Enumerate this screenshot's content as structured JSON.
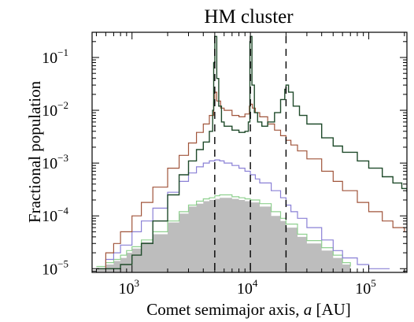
{
  "chart_data": {
    "type": "line",
    "title": "HM cluster",
    "xlabel_text": "Comet semimajor axis, ",
    "xlabel_var": "a",
    "xlabel_unit": " [AU]",
    "ylabel": "Fractional population",
    "xscale": "log",
    "yscale": "log",
    "xlim": [
      460,
      210000
    ],
    "ylim": [
      8.5e-06,
      0.3
    ],
    "x_ticks": [
      {
        "base": "10",
        "exp": "3",
        "value": 1000
      },
      {
        "base": "10",
        "exp": "4",
        "value": 10000
      },
      {
        "base": "10",
        "exp": "5",
        "value": 100000
      }
    ],
    "y_ticks": [
      {
        "base": "10",
        "exp": "−5",
        "value": 1e-05
      },
      {
        "base": "10",
        "exp": "−4",
        "value": 0.0001
      },
      {
        "base": "10",
        "exp": "−3",
        "value": 0.001
      },
      {
        "base": "10",
        "exp": "−2",
        "value": 0.01
      },
      {
        "base": "10",
        "exp": "−1",
        "value": 0.1
      }
    ],
    "reference_lines_x": [
      5000,
      10000,
      20000
    ],
    "colors": {
      "gray_fill": "#bdbdbd",
      "light_green": "#8fd08f",
      "purple": "#8a80d6",
      "brown": "#a0543a",
      "dark_green": "#1f4a2a",
      "axis": "#000000"
    },
    "series": [
      {
        "key": "gray",
        "style": "filled-histogram",
        "x": [
          500,
          600,
          700,
          800,
          900,
          1000,
          1200,
          1500,
          2000,
          2500,
          3000,
          3500,
          4000,
          4500,
          5000,
          5500,
          6000,
          7000,
          8000,
          9000,
          10000,
          12000,
          15000,
          18000,
          20000,
          25000,
          30000,
          40000,
          50000,
          60000,
          70000
        ],
        "y": [
          1e-05,
          1.2e-05,
          1.4e-05,
          1.6e-05,
          2e-05,
          2.4e-05,
          3.2e-05,
          4.5e-05,
          7.5e-05,
          0.00011,
          0.00015,
          0.00017,
          0.00019,
          0.0002,
          0.00021,
          0.00022,
          0.00022,
          0.00021,
          0.0002,
          0.00019,
          0.00018,
          0.00015,
          0.0001,
          8e-05,
          6e-05,
          4e-05,
          3e-05,
          2.2e-05,
          1.6e-05,
          1.2e-05,
          1e-05
        ]
      },
      {
        "key": "light_green",
        "style": "step",
        "x": [
          500,
          600,
          700,
          800,
          900,
          1000,
          1200,
          1500,
          2000,
          2500,
          3000,
          3500,
          4000,
          4500,
          5000,
          5500,
          6000,
          7000,
          8000,
          9000,
          10000,
          12000,
          15000,
          18000,
          20000,
          25000,
          30000,
          40000,
          50000,
          60000,
          70000
        ],
        "y": [
          1.1e-05,
          1.3e-05,
          1.5e-05,
          1.8e-05,
          2.2e-05,
          2.6e-05,
          3.5e-05,
          5e-05,
          8e-05,
          0.00012,
          0.00016,
          0.00019,
          0.00021,
          0.00022,
          0.00024,
          0.00025,
          0.00025,
          0.00023,
          0.00022,
          0.00021,
          0.0002,
          0.00017,
          0.00012,
          9e-05,
          7e-05,
          4.5e-05,
          3.4e-05,
          2.5e-05,
          1.8e-05,
          1.3e-05,
          1.1e-05
        ]
      },
      {
        "key": "purple",
        "style": "step",
        "x": [
          500,
          600,
          700,
          800,
          1000,
          1200,
          1500,
          2000,
          2500,
          3000,
          3500,
          4000,
          4500,
          5000,
          5500,
          6000,
          7000,
          8000,
          9000,
          10000,
          11000,
          12000,
          15000,
          18000,
          20000,
          22000,
          25000,
          30000,
          40000,
          50000,
          60000,
          80000,
          100000,
          150000
        ],
        "y": [
          1e-05,
          1.5e-05,
          2e-05,
          2.8e-05,
          5e-05,
          8e-05,
          0.00014,
          0.00028,
          0.00045,
          0.00065,
          0.00085,
          0.001,
          0.0011,
          0.00115,
          0.0011,
          0.001,
          0.0009,
          0.0008,
          0.0007,
          0.0006,
          0.0005,
          0.00042,
          0.0003,
          0.00022,
          0.00016,
          0.00012,
          9e-05,
          6e-05,
          3.5e-05,
          2.2e-05,
          1.6e-05,
          1.2e-05,
          1e-05,
          1e-05
        ]
      },
      {
        "key": "brown",
        "style": "step",
        "x": [
          500,
          600,
          700,
          800,
          1000,
          1200,
          1500,
          2000,
          2500,
          3000,
          3500,
          4000,
          4500,
          4900,
          5000,
          5200,
          5600,
          6000,
          7000,
          8000,
          9000,
          9800,
          10000,
          10400,
          11000,
          12000,
          14000,
          16000,
          18000,
          20000,
          22000,
          25000,
          30000,
          40000,
          50000,
          60000,
          80000,
          100000,
          130000,
          160000,
          200000
        ],
        "y": [
          1e-05,
          2e-05,
          3e-05,
          5e-05,
          0.0001,
          0.00018,
          0.00035,
          0.0008,
          0.0014,
          0.0024,
          0.0038,
          0.0055,
          0.008,
          0.014,
          0.022,
          0.015,
          0.011,
          0.01,
          0.008,
          0.0075,
          0.0085,
          0.012,
          0.013,
          0.011,
          0.009,
          0.0075,
          0.0055,
          0.0042,
          0.0033,
          0.0027,
          0.0022,
          0.0017,
          0.0012,
          0.0007,
          0.00045,
          0.0003,
          0.00018,
          0.00012,
          8e-05,
          6e-05,
          5e-05
        ]
      },
      {
        "key": "dark_green",
        "style": "step",
        "x": [
          500,
          600,
          800,
          1000,
          1200,
          1500,
          2000,
          2500,
          3000,
          3500,
          4000,
          4500,
          4800,
          4900,
          5000,
          5200,
          5400,
          5700,
          6000,
          7000,
          8000,
          9000,
          9600,
          9900,
          10000,
          10300,
          10800,
          11500,
          12500,
          14000,
          16000,
          18000,
          19500,
          20000,
          21000,
          23000,
          26000,
          30000,
          40000,
          50000,
          60000,
          80000,
          100000,
          130000,
          160000,
          190000,
          210000
        ],
        "y": [
          1e-05,
          1e-05,
          1.2e-05,
          1.8e-05,
          3e-05,
          8e-05,
          0.00025,
          0.0006,
          0.0011,
          0.0018,
          0.0025,
          0.004,
          0.01,
          0.08,
          0.25,
          0.04,
          0.012,
          0.006,
          0.005,
          0.0042,
          0.0038,
          0.004,
          0.006,
          0.2,
          0.25,
          0.03,
          0.009,
          0.006,
          0.005,
          0.006,
          0.009,
          0.016,
          0.025,
          0.03,
          0.022,
          0.012,
          0.008,
          0.0055,
          0.003,
          0.0021,
          0.0016,
          0.0011,
          0.0008,
          0.00055,
          0.00042,
          0.00033,
          0.00028
        ]
      }
    ]
  }
}
